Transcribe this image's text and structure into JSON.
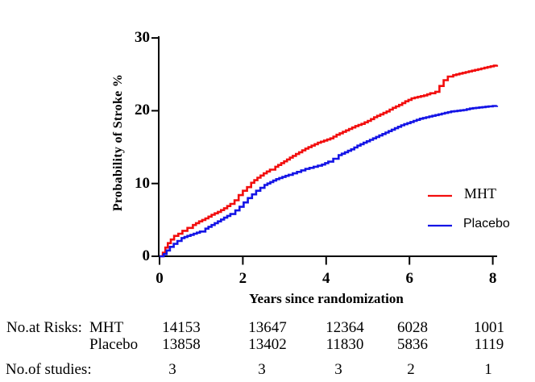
{
  "chart_data": {
    "type": "line",
    "subtype": "kaplan_meier_step",
    "title": "",
    "xlabel": "Years since randomization",
    "ylabel": "Probability of Stroke %",
    "xlim": [
      0,
      8.2
    ],
    "ylim": [
      0,
      30
    ],
    "x_ticks": [
      "0",
      "2",
      "4",
      "6",
      "8"
    ],
    "y_ticks": [
      "0",
      "10",
      "20",
      "30"
    ],
    "grid": false,
    "legend_position": "right-center",
    "axis_color": "#000000",
    "series": [
      {
        "name": "MHT",
        "color": "#f20d0d",
        "points": [
          [
            0,
            0
          ],
          [
            0.08,
            0.5
          ],
          [
            0.14,
            1.2
          ],
          [
            0.2,
            1.8
          ],
          [
            0.27,
            2.3
          ],
          [
            0.35,
            2.8
          ],
          [
            0.45,
            3.1
          ],
          [
            0.55,
            3.5
          ],
          [
            0.67,
            3.9
          ],
          [
            0.8,
            4.3
          ],
          [
            0.95,
            4.8
          ],
          [
            1.1,
            5.2
          ],
          [
            1.25,
            5.7
          ],
          [
            1.4,
            6.1
          ],
          [
            1.55,
            6.6
          ],
          [
            1.7,
            7.2
          ],
          [
            1.8,
            7.7
          ],
          [
            1.9,
            8.4
          ],
          [
            2.0,
            9.0
          ],
          [
            2.1,
            9.5
          ],
          [
            2.2,
            10.1
          ],
          [
            2.35,
            10.8
          ],
          [
            2.5,
            11.4
          ],
          [
            2.65,
            11.9
          ],
          [
            2.78,
            12.3
          ],
          [
            2.92,
            12.8
          ],
          [
            3.06,
            13.3
          ],
          [
            3.2,
            13.8
          ],
          [
            3.35,
            14.3
          ],
          [
            3.5,
            14.8
          ],
          [
            3.65,
            15.2
          ],
          [
            3.8,
            15.6
          ],
          [
            3.95,
            15.9
          ],
          [
            4.1,
            16.2
          ],
          [
            4.25,
            16.7
          ],
          [
            4.4,
            17.1
          ],
          [
            4.55,
            17.5
          ],
          [
            4.7,
            17.9
          ],
          [
            4.85,
            18.2
          ],
          [
            5.0,
            18.6
          ],
          [
            5.15,
            19.1
          ],
          [
            5.3,
            19.5
          ],
          [
            5.45,
            19.9
          ],
          [
            5.6,
            20.4
          ],
          [
            5.75,
            20.8
          ],
          [
            5.9,
            21.3
          ],
          [
            6.05,
            21.7
          ],
          [
            6.2,
            21.9
          ],
          [
            6.35,
            22.1
          ],
          [
            6.5,
            22.4
          ],
          [
            6.62,
            22.6
          ],
          [
            6.72,
            23.4
          ],
          [
            6.82,
            24.2
          ],
          [
            6.92,
            24.7
          ],
          [
            7.05,
            24.9
          ],
          [
            7.2,
            25.1
          ],
          [
            7.35,
            25.3
          ],
          [
            7.5,
            25.5
          ],
          [
            7.65,
            25.7
          ],
          [
            7.8,
            25.9
          ],
          [
            7.95,
            26.1
          ],
          [
            8.1,
            26.3
          ]
        ]
      },
      {
        "name": "Placebo",
        "color": "#1414e6",
        "points": [
          [
            0,
            0
          ],
          [
            0.1,
            0.3
          ],
          [
            0.17,
            0.8
          ],
          [
            0.25,
            1.3
          ],
          [
            0.34,
            1.7
          ],
          [
            0.43,
            2.1
          ],
          [
            0.53,
            2.5
          ],
          [
            0.67,
            2.8
          ],
          [
            0.82,
            3.1
          ],
          [
            0.97,
            3.4
          ],
          [
            1.1,
            3.8
          ],
          [
            1.25,
            4.3
          ],
          [
            1.4,
            4.8
          ],
          [
            1.55,
            5.3
          ],
          [
            1.7,
            5.8
          ],
          [
            1.82,
            6.3
          ],
          [
            1.92,
            6.8
          ],
          [
            2.02,
            7.4
          ],
          [
            2.12,
            8.0
          ],
          [
            2.22,
            8.5
          ],
          [
            2.32,
            9.0
          ],
          [
            2.42,
            9.4
          ],
          [
            2.52,
            9.8
          ],
          [
            2.66,
            10.2
          ],
          [
            2.8,
            10.6
          ],
          [
            2.95,
            10.9
          ],
          [
            3.1,
            11.2
          ],
          [
            3.3,
            11.6
          ],
          [
            3.5,
            12.0
          ],
          [
            3.7,
            12.3
          ],
          [
            3.9,
            12.6
          ],
          [
            4.05,
            13.0
          ],
          [
            4.17,
            13.4
          ],
          [
            4.3,
            13.9
          ],
          [
            4.45,
            14.3
          ],
          [
            4.6,
            14.7
          ],
          [
            4.75,
            15.2
          ],
          [
            4.9,
            15.6
          ],
          [
            5.05,
            16.0
          ],
          [
            5.2,
            16.4
          ],
          [
            5.35,
            16.8
          ],
          [
            5.5,
            17.2
          ],
          [
            5.65,
            17.6
          ],
          [
            5.8,
            18.0
          ],
          [
            5.95,
            18.3
          ],
          [
            6.1,
            18.6
          ],
          [
            6.25,
            18.9
          ],
          [
            6.4,
            19.1
          ],
          [
            6.55,
            19.3
          ],
          [
            6.7,
            19.5
          ],
          [
            6.85,
            19.7
          ],
          [
            7.0,
            19.9
          ],
          [
            7.15,
            20.0
          ],
          [
            7.3,
            20.1
          ],
          [
            7.45,
            20.3
          ],
          [
            7.6,
            20.4
          ],
          [
            7.75,
            20.5
          ],
          [
            7.9,
            20.6
          ],
          [
            8.1,
            20.7
          ]
        ]
      }
    ]
  },
  "risk_table": {
    "title": "No.at Risks:",
    "rows": [
      {
        "label": "MHT",
        "values": [
          "14153",
          "13647",
          "12364",
          "6028",
          "1001"
        ]
      },
      {
        "label": "Placebo",
        "values": [
          "13858",
          "13402",
          "11830",
          "5836",
          "1119"
        ]
      }
    ],
    "studies_row": {
      "label": "No.of studies:",
      "values": [
        "3",
        "3",
        "3",
        "2",
        "1"
      ]
    }
  }
}
